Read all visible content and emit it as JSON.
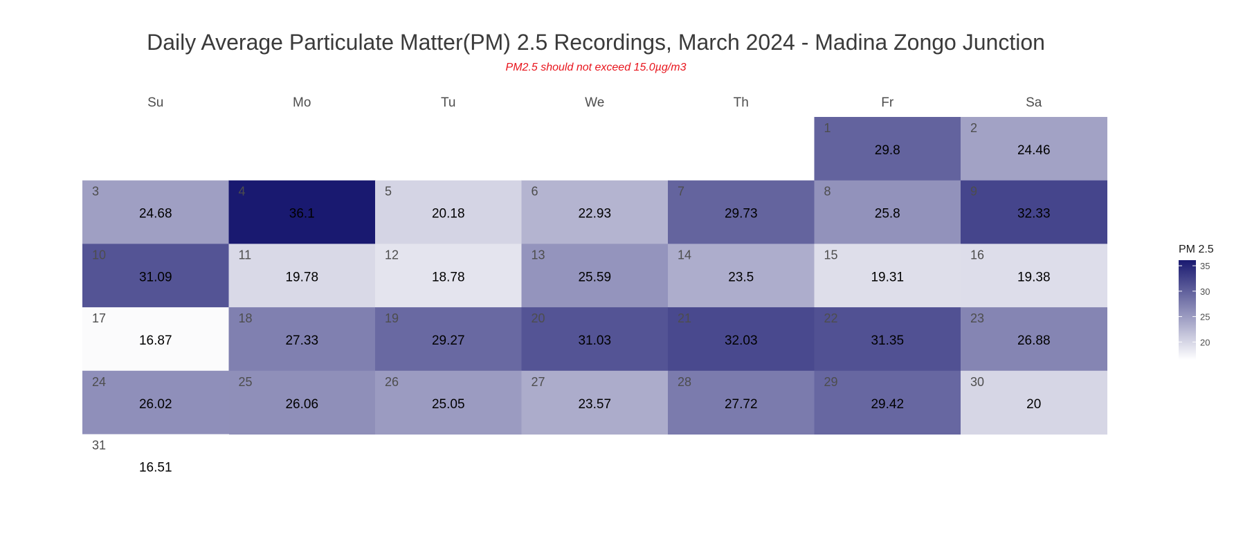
{
  "chart_data": {
    "type": "heatmap",
    "title": "Daily Average Particulate Matter(PM) 2.5 Recordings, March 2024 - Madina Zongo Junction",
    "subtitle": "PM2.5 should not exceed 15.0µg/m3",
    "weekdays": [
      "Su",
      "Mo",
      "Tu",
      "We",
      "Th",
      "Fr",
      "Sa"
    ],
    "first_weekday_index": 5,
    "days": [
      {
        "day": "1",
        "value": 29.8,
        "label": "29.8"
      },
      {
        "day": "2",
        "value": 24.46,
        "label": "24.46"
      },
      {
        "day": "3",
        "value": 24.68,
        "label": "24.68"
      },
      {
        "day": "4",
        "value": 36.1,
        "label": "36.1"
      },
      {
        "day": "5",
        "value": 20.18,
        "label": "20.18"
      },
      {
        "day": "6",
        "value": 22.93,
        "label": "22.93"
      },
      {
        "day": "7",
        "value": 29.73,
        "label": "29.73"
      },
      {
        "day": "8",
        "value": 25.8,
        "label": "25.8"
      },
      {
        "day": "9",
        "value": 32.33,
        "label": "32.33"
      },
      {
        "day": "10",
        "value": 31.09,
        "label": "31.09"
      },
      {
        "day": "11",
        "value": 19.78,
        "label": "19.78"
      },
      {
        "day": "12",
        "value": 18.78,
        "label": "18.78"
      },
      {
        "day": "13",
        "value": 25.59,
        "label": "25.59"
      },
      {
        "day": "14",
        "value": 23.5,
        "label": "23.5"
      },
      {
        "day": "15",
        "value": 19.31,
        "label": "19.31"
      },
      {
        "day": "16",
        "value": 19.38,
        "label": "19.38"
      },
      {
        "day": "17",
        "value": 16.87,
        "label": "16.87"
      },
      {
        "day": "18",
        "value": 27.33,
        "label": "27.33"
      },
      {
        "day": "19",
        "value": 29.27,
        "label": "29.27"
      },
      {
        "day": "20",
        "value": 31.03,
        "label": "31.03"
      },
      {
        "day": "21",
        "value": 32.03,
        "label": "32.03"
      },
      {
        "day": "22",
        "value": 31.35,
        "label": "31.35"
      },
      {
        "day": "23",
        "value": 26.88,
        "label": "26.88"
      },
      {
        "day": "24",
        "value": 26.02,
        "label": "26.02"
      },
      {
        "day": "25",
        "value": 26.06,
        "label": "26.06"
      },
      {
        "day": "26",
        "value": 25.05,
        "label": "25.05"
      },
      {
        "day": "27",
        "value": 23.57,
        "label": "23.57"
      },
      {
        "day": "28",
        "value": 27.72,
        "label": "27.72"
      },
      {
        "day": "29",
        "value": 29.42,
        "label": "29.42"
      },
      {
        "day": "30",
        "value": 20,
        "label": "20"
      },
      {
        "day": "31",
        "value": 16.51,
        "label": "16.51"
      }
    ],
    "uncolored_days": [
      "31"
    ],
    "legend": {
      "title": "PM 2.5",
      "ticks": [
        "20",
        "25",
        "30",
        "35"
      ],
      "range": [
        16.5,
        36.1
      ],
      "color_low": "#ffffff",
      "color_high": "#191970"
    }
  }
}
